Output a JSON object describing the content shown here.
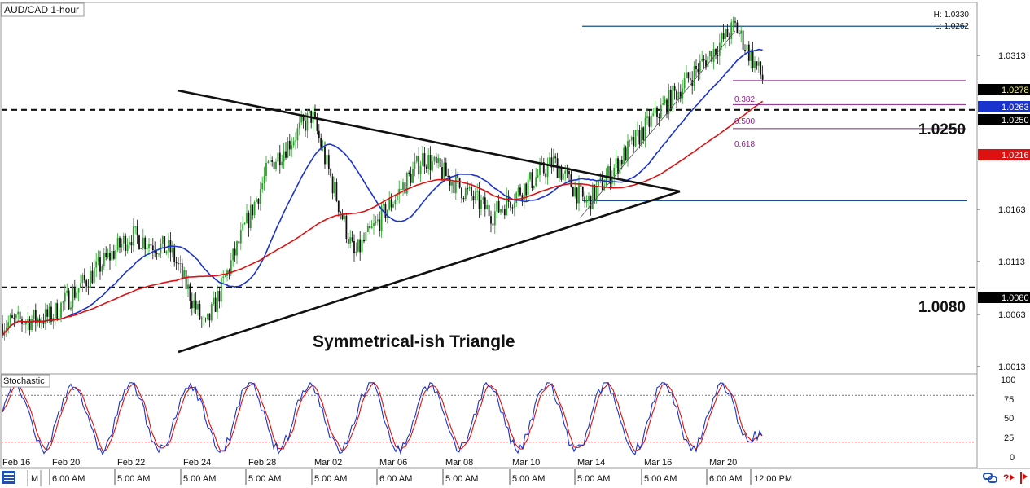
{
  "window": {
    "title": "AUD/CAD 1-hour",
    "high_label": "H: 1.0330",
    "low_label": "L: 1.0262",
    "indicator_title": "Stochastic"
  },
  "annotations": {
    "pattern_text": "Symmetrical-ish Triangle",
    "resistance_label": "1.0250",
    "support_label": "1.0080",
    "fib_levels": [
      "0.382",
      "0.500",
      "0.618"
    ]
  },
  "price_axis": {
    "ticks": [
      "1.0313",
      "1.0163",
      "1.0113",
      "1.0063",
      "1.0013"
    ],
    "badges": [
      {
        "label": "1.0278",
        "bg": "#000000",
        "fg": "#ffff66"
      },
      {
        "label": "1.0263",
        "bg": "#1a33cc",
        "fg": "#ffffff"
      },
      {
        "label": "1.0250",
        "bg": "#000000",
        "fg": "#ffffff"
      },
      {
        "label": "1.0216",
        "bg": "#dd1111",
        "fg": "#ffffff"
      },
      {
        "label": "1.0080",
        "bg": "#000000",
        "fg": "#ffffff"
      }
    ]
  },
  "stoch_axis": {
    "ticks": [
      "100",
      "75",
      "50",
      "25",
      "0"
    ]
  },
  "time_axis": {
    "top": [
      "Feb 16",
      "Feb 20",
      "Feb 22",
      "Feb 24",
      "Feb 28",
      "Mar 02",
      "Mar 06",
      "Mar 08",
      "Mar 10",
      "Mar 14",
      "Mar 16",
      "Mar 20"
    ],
    "bottom": [
      "6:00 AM",
      "5:00 AM",
      "5:00 AM",
      "5:00 AM",
      "5:00 AM",
      "6:00 AM",
      "5:00 AM",
      "5:00 AM",
      "5:00 AM",
      "5:00 AM",
      "6:00 AM",
      "12:00 PM"
    ]
  },
  "status_bar": {
    "mode_letter": "M",
    "icons": [
      "grid-menu-icon",
      "link-icon",
      "question-arrow-icon",
      "pin-icon"
    ]
  },
  "colors": {
    "ma_fast": "#1a33cc",
    "ma_slow": "#dd1111",
    "candle_up": "#26a326",
    "candle_down": "#111111",
    "fib": "#8b1f8b",
    "stoch_k": "#1a33cc",
    "stoch_d": "#dd1111",
    "level_line": "#1f4f8f"
  },
  "chart_data": {
    "type": "candlestick",
    "title": "AUD/CAD 1-hour",
    "x": [
      "Feb 16",
      "Feb 20",
      "Feb 22",
      "Feb 24",
      "Feb 28",
      "Mar 02",
      "Mar 06",
      "Mar 08",
      "Mar 10",
      "Mar 14",
      "Mar 16",
      "Mar 20"
    ],
    "close_path": [
      {
        "x": "Feb 16",
        "y": 1.0045
      },
      {
        "x": "Feb 20",
        "y": 1.0052
      },
      {
        "x": "Feb 22",
        "y": 1.013
      },
      {
        "x": "Feb 23",
        "y": 1.0115
      },
      {
        "x": "Feb 24",
        "y": 1.004
      },
      {
        "x": "Feb 28",
        "y": 1.0195
      },
      {
        "x": "Mar 01",
        "y": 1.0245
      },
      {
        "x": "Mar 02",
        "y": 1.011
      },
      {
        "x": "Mar 06",
        "y": 1.0205
      },
      {
        "x": "Mar 08",
        "y": 1.015
      },
      {
        "x": "Mar 10",
        "y": 1.02
      },
      {
        "x": "Mar 14",
        "y": 1.016
      },
      {
        "x": "Mar 16",
        "y": 1.024
      },
      {
        "x": "Mar 20",
        "y": 1.033
      },
      {
        "x": "12:00 PM",
        "y": 1.0278
      }
    ],
    "moving_averages": [
      {
        "name": "blue",
        "last": 1.0263
      },
      {
        "name": "red",
        "last": 1.0216
      }
    ],
    "horizontal_levels": [
      1.033,
      1.025,
      1.0163,
      1.008
    ],
    "stochastic": {
      "overbought": 80,
      "oversold": 20,
      "last": 28
    },
    "ylim": [
      0.9998,
      1.0352
    ]
  }
}
